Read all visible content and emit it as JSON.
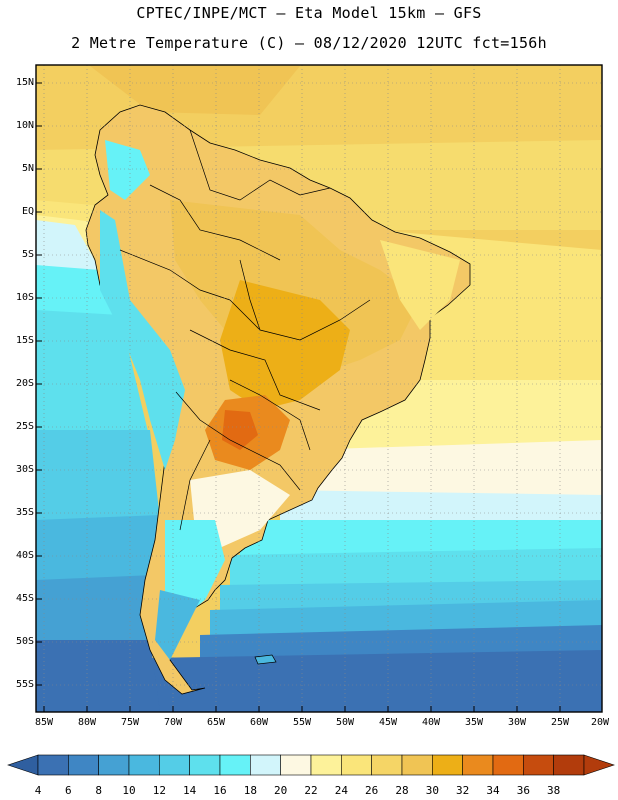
{
  "header": {
    "line1": "CPTEC/INPE/MCT –  Eta Model 15km – GFS",
    "line2": "2 Metre Temperature (C) – 08/12/2020 12UTC fct=156h"
  },
  "axes": {
    "lat_labels": [
      "15N",
      "10N",
      "5N",
      "EQ",
      "5S",
      "10S",
      "15S",
      "20S",
      "25S",
      "30S",
      "35S",
      "40S",
      "45S",
      "50S",
      "55S"
    ],
    "lon_labels": [
      "85W",
      "80W",
      "75W",
      "70W",
      "65W",
      "60W",
      "55W",
      "50W",
      "45W",
      "40W",
      "35W",
      "30W",
      "25W",
      "20W"
    ]
  },
  "colorbar": {
    "labels": [
      "4",
      "6",
      "8",
      "10",
      "12",
      "14",
      "16",
      "18",
      "20",
      "22",
      "24",
      "26",
      "28",
      "30",
      "32",
      "34",
      "36",
      "38"
    ],
    "colors": [
      "#3b71b3",
      "#3f86c4",
      "#45a1d3",
      "#4ab8df",
      "#54cde7",
      "#5ee0ed",
      "#66f2f7",
      "#d2f5fb",
      "#fdf8e2",
      "#fdf29a",
      "#fae57a",
      "#f5d566",
      "#f0c454",
      "#edaf17",
      "#ea8a1e",
      "#e26a12",
      "#c64c0e",
      "#b23c0c"
    ],
    "below_color": "#2f5fa0",
    "above_color": "#b23c0c"
  }
}
